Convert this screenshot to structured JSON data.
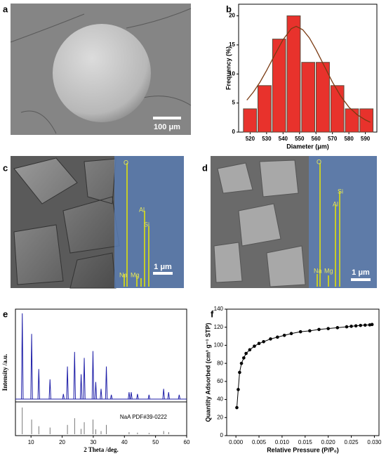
{
  "images": [
    {
      "panel": "a",
      "scale_bar": "100 μm"
    },
    {
      "panel": "c",
      "scale_bar": "1 μm",
      "elements": [
        "O",
        "Al",
        "Si",
        "Na",
        "Mg"
      ]
    },
    {
      "panel": "d",
      "scale_bar": "1 μm",
      "elements": [
        "O",
        "Si",
        "Al",
        "Na",
        "Mg"
      ]
    }
  ],
  "chart_data": [
    {
      "panel": "b",
      "type": "histogram",
      "xlabel": "Diameter (μm)",
      "ylabel": "Frequency (%)",
      "bins": [
        515.5,
        524.3,
        533.2,
        542,
        550.9,
        559.7,
        568.6,
        577.4,
        586.3,
        595.1
      ],
      "values": [
        4,
        8,
        16,
        20,
        12,
        12,
        8,
        4,
        4
      ],
      "color": "#e8322c",
      "fit": {
        "x": [
          518,
          522,
          526,
          530,
          535,
          540,
          545,
          548,
          552,
          556,
          560,
          565,
          570,
          575,
          580,
          585,
          590,
          593
        ],
        "values": [
          5.5,
          6.9,
          8.6,
          10.6,
          13.3,
          15.9,
          17.8,
          18.2,
          17.6,
          16.2,
          14.2,
          11.4,
          8.6,
          6.2,
          4.3,
          3.0,
          2.1,
          1.7
        ],
        "color": "#7a3a12"
      },
      "xlim": [
        513,
        597
      ],
      "ylim": [
        0,
        22
      ],
      "xticks": [
        520,
        530,
        540,
        550,
        560,
        570,
        580,
        590
      ],
      "yticks": [
        0,
        5,
        10,
        15,
        20
      ]
    },
    {
      "panel": "e",
      "type": "spectrum",
      "xlabel": "2 Theta /deg.",
      "ylabel": "Intensity /a.u.",
      "xlim": [
        5,
        60
      ],
      "ylim": [
        0,
        100
      ],
      "xticks": [
        10,
        20,
        30,
        40,
        50,
        60
      ],
      "series": [
        {
          "color": "#1f1fa8",
          "x": [
            7.2,
            10.2,
            12.5,
            16.1,
            20.4,
            21.7,
            24.0,
            26.1,
            27.1,
            29.9,
            30.8,
            32.5,
            34.2,
            35.8,
            41.5,
            42.2,
            44.2,
            47.9,
            52.6,
            54.2,
            57.6
          ],
          "values": [
            100,
            76,
            35,
            23,
            6,
            38,
            55,
            29,
            48,
            56,
            20,
            12,
            38,
            5,
            8,
            8,
            6,
            5,
            12,
            8,
            5
          ]
        },
        {
          "name": "NaA PDF#39-0222",
          "color": "#555555",
          "x": [
            7.2,
            10.2,
            12.5,
            16.1,
            21.7,
            24.0,
            26.1,
            27.1,
            29.9,
            30.8,
            32.5,
            34.2,
            41.5,
            44.2,
            47.9,
            52.6,
            54.2
          ],
          "values": [
            100,
            55,
            30,
            25,
            35,
            60,
            20,
            45,
            55,
            18,
            12,
            35,
            8,
            6,
            5,
            12,
            8
          ]
        }
      ]
    },
    {
      "panel": "f",
      "type": "line",
      "xlabel": "Relative Pressure (P/P₀)",
      "ylabel": "Quantity Adsorbed (cm³ g⁻¹ STP)",
      "color": "#000000",
      "x": [
        0.0002,
        0.0005,
        0.0008,
        0.0012,
        0.0017,
        0.0022,
        0.003,
        0.004,
        0.005,
        0.006,
        0.0075,
        0.009,
        0.0105,
        0.012,
        0.014,
        0.016,
        0.018,
        0.02,
        0.022,
        0.024,
        0.025,
        0.026,
        0.027,
        0.028,
        0.029,
        0.0295
      ],
      "values": [
        31,
        51,
        70,
        80,
        86,
        91,
        95,
        99,
        102,
        104,
        107,
        109,
        111,
        113,
        115,
        116,
        117.5,
        118.5,
        119.5,
        120.5,
        121,
        121.5,
        122,
        122.3,
        122.6,
        123
      ],
      "xlim": [
        -0.002,
        0.031
      ],
      "ylim": [
        0,
        140
      ],
      "xticks": [
        {
          "value": 0,
          "label": "0.000"
        },
        {
          "value": 0.005,
          "label": "0.005"
        },
        {
          "value": 0.01,
          "label": "0.010"
        },
        {
          "value": 0.015,
          "label": "0.015"
        },
        {
          "value": 0.02,
          "label": "0.020"
        },
        {
          "value": 0.025,
          "label": "0.025"
        },
        {
          "value": 0.03,
          "label": "0.030"
        }
      ],
      "yticks": [
        0,
        20,
        40,
        60,
        80,
        100,
        120,
        140
      ]
    }
  ]
}
